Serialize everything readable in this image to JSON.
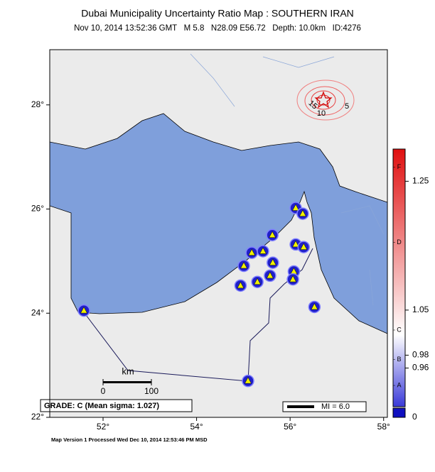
{
  "header": {
    "title": "Dubai Municipality Uncertainty Ratio Map : SOUTHERN IRAN",
    "subtitle": "Nov 10, 2014 13:52:36 GMT   M 5.8   N28.09 E56.72   Depth: 10.0km   ID:4276"
  },
  "map": {
    "lon_range": [
      50.86,
      58.08
    ],
    "lat_range": [
      22.0,
      29.06
    ],
    "lon_ticks": [
      {
        "value": 52,
        "label": "52°"
      },
      {
        "value": 54,
        "label": "54°"
      },
      {
        "value": 56,
        "label": "56°"
      },
      {
        "value": 58,
        "label": "58°"
      }
    ],
    "lat_ticks": [
      {
        "value": 22,
        "label": "22°"
      },
      {
        "value": 24,
        "label": "24°"
      },
      {
        "value": 26,
        "label": "26°"
      },
      {
        "value": 28,
        "label": "28°"
      }
    ],
    "stations": [
      {
        "lon": 51.59,
        "lat": 24.05
      },
      {
        "lon": 55.1,
        "lat": 22.7
      },
      {
        "lon": 56.12,
        "lat": 26.02
      },
      {
        "lon": 56.27,
        "lat": 25.91
      },
      {
        "lon": 55.62,
        "lat": 25.5
      },
      {
        "lon": 56.12,
        "lat": 25.32
      },
      {
        "lon": 56.29,
        "lat": 25.27
      },
      {
        "lon": 55.18,
        "lat": 25.16
      },
      {
        "lon": 55.42,
        "lat": 25.19
      },
      {
        "lon": 55.01,
        "lat": 24.91
      },
      {
        "lon": 55.63,
        "lat": 24.97
      },
      {
        "lon": 55.57,
        "lat": 24.72
      },
      {
        "lon": 56.08,
        "lat": 24.8
      },
      {
        "lon": 56.06,
        "lat": 24.65
      },
      {
        "lon": 55.3,
        "lat": 24.6
      },
      {
        "lon": 54.94,
        "lat": 24.53
      },
      {
        "lon": 56.52,
        "lat": 24.12
      }
    ]
  },
  "contours": {
    "labels": [
      "15",
      "10",
      "5"
    ]
  },
  "scale_bar": {
    "unit": "km",
    "start": "0",
    "end": "100"
  },
  "grade_box": "GRADE: C (Mean sigma: 1.027)",
  "mi_legend": "MI = 6.0",
  "colorbar": {
    "range": [
      0.9,
      1.3
    ],
    "ticks": [
      0.96,
      0.98,
      1.05,
      1.25
    ],
    "zero_tick": 0,
    "grades": [
      {
        "value": 0.933,
        "label": "A"
      },
      {
        "value": 0.973,
        "label": "B"
      },
      {
        "value": 1.019,
        "label": "C"
      },
      {
        "value": 1.155,
        "label": "D"
      },
      {
        "value": 1.272,
        "label": "F"
      }
    ]
  },
  "footer": "Map Version 1 Processed Wed Dec 10, 2014 12:53:46 PM MSD"
}
